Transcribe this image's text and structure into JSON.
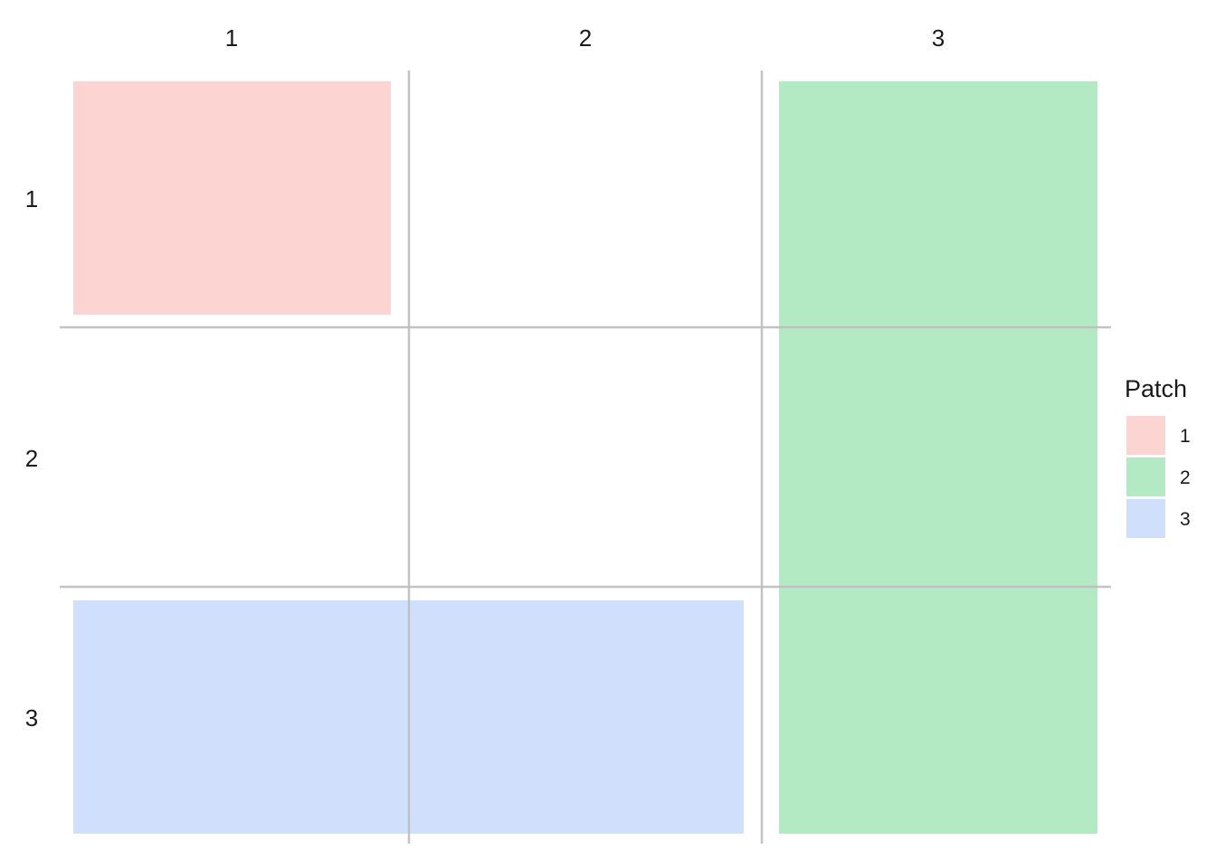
{
  "chart_data": {
    "type": "patchwork-layout",
    "grid": {
      "rows": 3,
      "cols": 3
    },
    "column_labels": [
      "1",
      "2",
      "3"
    ],
    "row_labels": [
      "1",
      "2",
      "3"
    ],
    "patches": [
      {
        "id": "1",
        "rows": [
          1,
          1
        ],
        "cols": [
          1,
          1
        ],
        "color": "#FCD5D3"
      },
      {
        "id": "2",
        "rows": [
          1,
          3
        ],
        "cols": [
          3,
          3
        ],
        "color": "#B3EAC4"
      },
      {
        "id": "3",
        "rows": [
          3,
          3
        ],
        "cols": [
          1,
          2
        ],
        "color": "#D0E0FC"
      }
    ],
    "legend": {
      "title": "Patch",
      "entries": [
        {
          "label": "1",
          "color": "#FCD5D3"
        },
        {
          "label": "2",
          "color": "#B3EAC4"
        },
        {
          "label": "3",
          "color": "#D0E0FC"
        }
      ]
    },
    "gridline_color": "#BDBDBD"
  }
}
